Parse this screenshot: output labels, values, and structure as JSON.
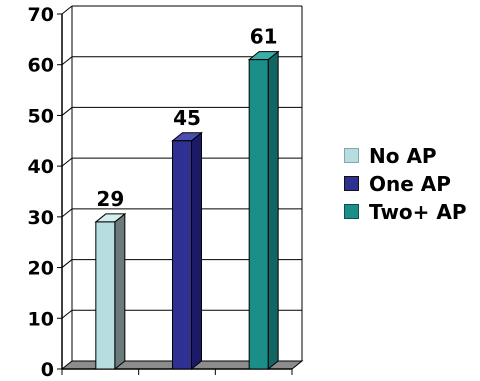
{
  "chart_data": {
    "type": "bar",
    "categories": [
      "No AP",
      "One AP",
      "Two+ AP"
    ],
    "values": [
      29,
      45,
      61
    ],
    "series_colors": [
      "#b8dde1",
      "#2e3192",
      "#1c8e8a"
    ],
    "side_colors": [
      "#6b7b7b",
      "#1a1a66",
      "#136563"
    ],
    "top_colors": [
      "#d6eef0",
      "#4a4db0",
      "#3aaea8"
    ],
    "ylim": [
      0,
      70
    ],
    "yticks": [
      "0",
      "10",
      "20",
      "30",
      "40",
      "50",
      "60",
      "70"
    ],
    "title": "",
    "xlabel": "",
    "ylabel": "",
    "grid": true,
    "data_labels": true,
    "legend_placement": "right"
  },
  "legend": {
    "items": [
      {
        "label": "No AP",
        "color": "#b8dde1"
      },
      {
        "label": "One AP",
        "color": "#2e3192"
      },
      {
        "label": "Two+ AP",
        "color": "#1c8e8a"
      }
    ]
  }
}
